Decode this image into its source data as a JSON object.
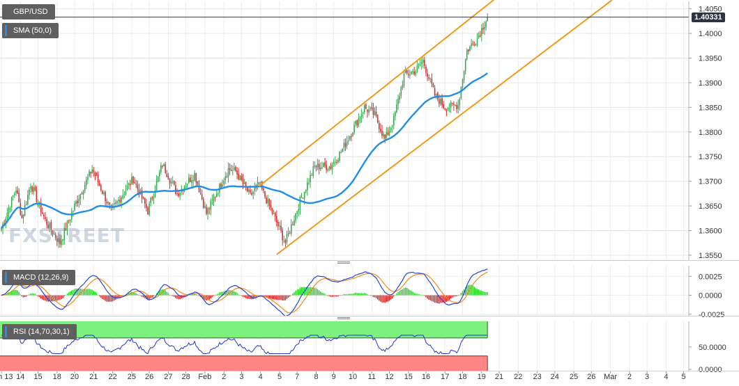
{
  "chart_data": [
    {
      "type": "candlestick",
      "symbol": "GBP/USD",
      "indicator_label": "SMA (50,0)",
      "last_price": "1.40331",
      "ylim": [
        1.354,
        1.4065
      ],
      "yticks": [
        {
          "v": 1.355,
          "label": "1.3550"
        },
        {
          "v": 1.36,
          "label": "1.3600"
        },
        {
          "v": 1.365,
          "label": "1.3650"
        },
        {
          "v": 1.37,
          "label": "1.3700"
        },
        {
          "v": 1.375,
          "label": "1.3750"
        },
        {
          "v": 1.38,
          "label": "1.3800"
        },
        {
          "v": 1.385,
          "label": "1.3850"
        },
        {
          "v": 1.39,
          "label": "1.3900"
        },
        {
          "v": 1.395,
          "label": "1.3950"
        },
        {
          "v": 1.4,
          "label": "1.4000"
        },
        {
          "v": 1.405,
          "label": "1.4050"
        }
      ],
      "waypoints": [
        [
          0,
          1.3605
        ],
        [
          10,
          1.3685
        ],
        [
          14,
          1.3625
        ],
        [
          20,
          1.3695
        ],
        [
          30,
          1.362
        ],
        [
          40,
          1.3575
        ],
        [
          50,
          1.365
        ],
        [
          62,
          1.3725
        ],
        [
          75,
          1.364
        ],
        [
          90,
          1.3705
        ],
        [
          100,
          1.364
        ],
        [
          110,
          1.3735
        ],
        [
          120,
          1.3675
        ],
        [
          132,
          1.3715
        ],
        [
          140,
          1.3635
        ],
        [
          155,
          1.3725
        ],
        [
          160,
          1.372
        ],
        [
          170,
          1.367
        ],
        [
          176,
          1.3695
        ],
        [
          186,
          1.363
        ],
        [
          194,
          1.3575
        ],
        [
          204,
          1.366
        ],
        [
          214,
          1.373
        ],
        [
          225,
          1.373
        ],
        [
          232,
          1.376
        ],
        [
          248,
          1.385
        ],
        [
          255,
          1.3835
        ],
        [
          262,
          1.3785
        ],
        [
          268,
          1.3825
        ],
        [
          275,
          1.3915
        ],
        [
          283,
          1.3925
        ],
        [
          288,
          1.3945
        ],
        [
          296,
          1.3875
        ],
        [
          303,
          1.385
        ],
        [
          312,
          1.3855
        ],
        [
          318,
          1.3965
        ],
        [
          325,
          1.399
        ],
        [
          332,
          1.40331
        ]
      ],
      "sma_last": 1.3875,
      "channel": {
        "upper": [
          [
            176,
            1.369
          ],
          [
            332,
            1.4058
          ]
        ],
        "lower": [
          [
            194,
            1.3565
          ],
          [
            332,
            1.3876
          ]
        ]
      },
      "x_axis": [
        {
          "i": 0,
          "label": "Jan 13"
        },
        {
          "i": 13,
          "label": "14"
        },
        {
          "i": 25,
          "label": "15"
        },
        {
          "i": 38,
          "label": "18"
        },
        {
          "i": 50,
          "label": "20"
        },
        {
          "i": 63,
          "label": "21"
        },
        {
          "i": 76,
          "label": "22"
        },
        {
          "i": 89,
          "label": "25"
        },
        {
          "i": 101,
          "label": "26"
        },
        {
          "i": 114,
          "label": "27"
        },
        {
          "i": 126,
          "label": "28"
        },
        {
          "i": 139,
          "label": "Feb"
        },
        {
          "i": 152,
          "label": "2"
        },
        {
          "i": 164,
          "label": "3"
        },
        {
          "i": 177,
          "label": "4"
        },
        {
          "i": 190,
          "label": "5"
        },
        {
          "i": 202,
          "label": "7"
        },
        {
          "i": 215,
          "label": "8"
        },
        {
          "i": 227,
          "label": "9"
        },
        {
          "i": 240,
          "label": "10"
        },
        {
          "i": 253,
          "label": "11"
        },
        {
          "i": 265,
          "label": "12"
        },
        {
          "i": 278,
          "label": "15"
        },
        {
          "i": 290,
          "label": "16"
        },
        {
          "i": 303,
          "label": "17"
        },
        {
          "i": 315,
          "label": "18"
        },
        {
          "i": 328,
          "label": "19"
        },
        {
          "i": 340,
          "label": "21"
        },
        {
          "i": 353,
          "label": "22"
        },
        {
          "i": 366,
          "label": "23"
        },
        {
          "i": 378,
          "label": "24"
        },
        {
          "i": 391,
          "label": "25"
        },
        {
          "i": 403,
          "label": "26"
        },
        {
          "i": 416,
          "label": "Mar"
        },
        {
          "i": 429,
          "label": "2"
        },
        {
          "i": 441,
          "label": "3"
        },
        {
          "i": 454,
          "label": "4"
        },
        {
          "i": 466,
          "label": "5"
        }
      ],
      "watermark": "FXSTREET"
    },
    {
      "type": "macd",
      "label": "MACD (12,26,9)",
      "ylim": [
        -0.0027,
        0.0039
      ],
      "yticks": [
        {
          "v": 0.0025,
          "label": "0.0025"
        },
        {
          "v": 0.0,
          "label": "0.0000"
        },
        {
          "v": -0.0025,
          "label": "-0.0025"
        }
      ]
    },
    {
      "type": "rsi",
      "label": "RSI (14,70,30,1)",
      "ylim": [
        -3,
        107
      ],
      "levels": [
        70,
        30
      ],
      "yticks": [
        {
          "v": 50,
          "label": "50.0000"
        },
        {
          "v": 0,
          "label": "0.0000"
        }
      ]
    }
  ]
}
